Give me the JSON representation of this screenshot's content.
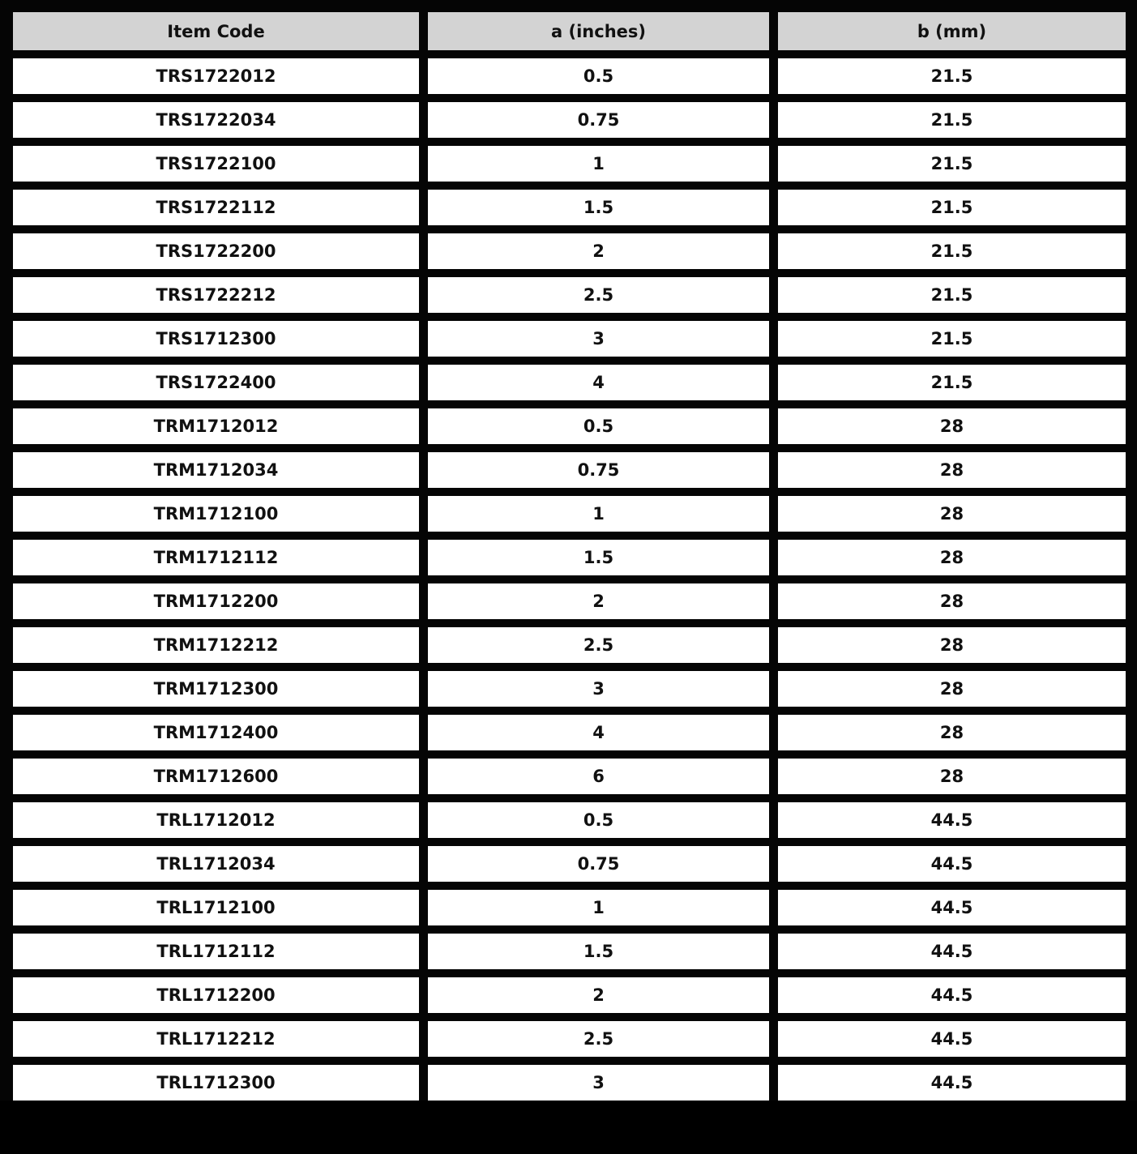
{
  "table": {
    "headers": [
      "Item Code",
      "a (inches)",
      "b (mm)"
    ],
    "rows": [
      [
        "TRS1722012",
        "0.5",
        "21.5"
      ],
      [
        "TRS1722034",
        "0.75",
        "21.5"
      ],
      [
        "TRS1722100",
        "1",
        "21.5"
      ],
      [
        "TRS1722112",
        "1.5",
        "21.5"
      ],
      [
        "TRS1722200",
        "2",
        "21.5"
      ],
      [
        "TRS1722212",
        "2.5",
        "21.5"
      ],
      [
        "TRS1712300",
        "3",
        "21.5"
      ],
      [
        "TRS1722400",
        "4",
        "21.5"
      ],
      [
        "TRM1712012",
        "0.5",
        "28"
      ],
      [
        "TRM1712034",
        "0.75",
        "28"
      ],
      [
        "TRM1712100",
        "1",
        "28"
      ],
      [
        "TRM1712112",
        "1.5",
        "28"
      ],
      [
        "TRM1712200",
        "2",
        "28"
      ],
      [
        "TRM1712212",
        "2.5",
        "28"
      ],
      [
        "TRM1712300",
        "3",
        "28"
      ],
      [
        "TRM1712400",
        "4",
        "28"
      ],
      [
        "TRM1712600",
        "6",
        "28"
      ],
      [
        "TRL1712012",
        "0.5",
        "44.5"
      ],
      [
        "TRL1712034",
        "0.75",
        "44.5"
      ],
      [
        "TRL1712100",
        "1",
        "44.5"
      ],
      [
        "TRL1712112",
        "1.5",
        "44.5"
      ],
      [
        "TRL1712200",
        "2",
        "44.5"
      ],
      [
        "TRL1712212",
        "2.5",
        "44.5"
      ],
      [
        "TRL1712300",
        "3",
        "44.5"
      ]
    ]
  },
  "colors": {
    "border": "#000000",
    "header_bg": "#d3d3d3",
    "cell_bg": "#ffffff"
  }
}
